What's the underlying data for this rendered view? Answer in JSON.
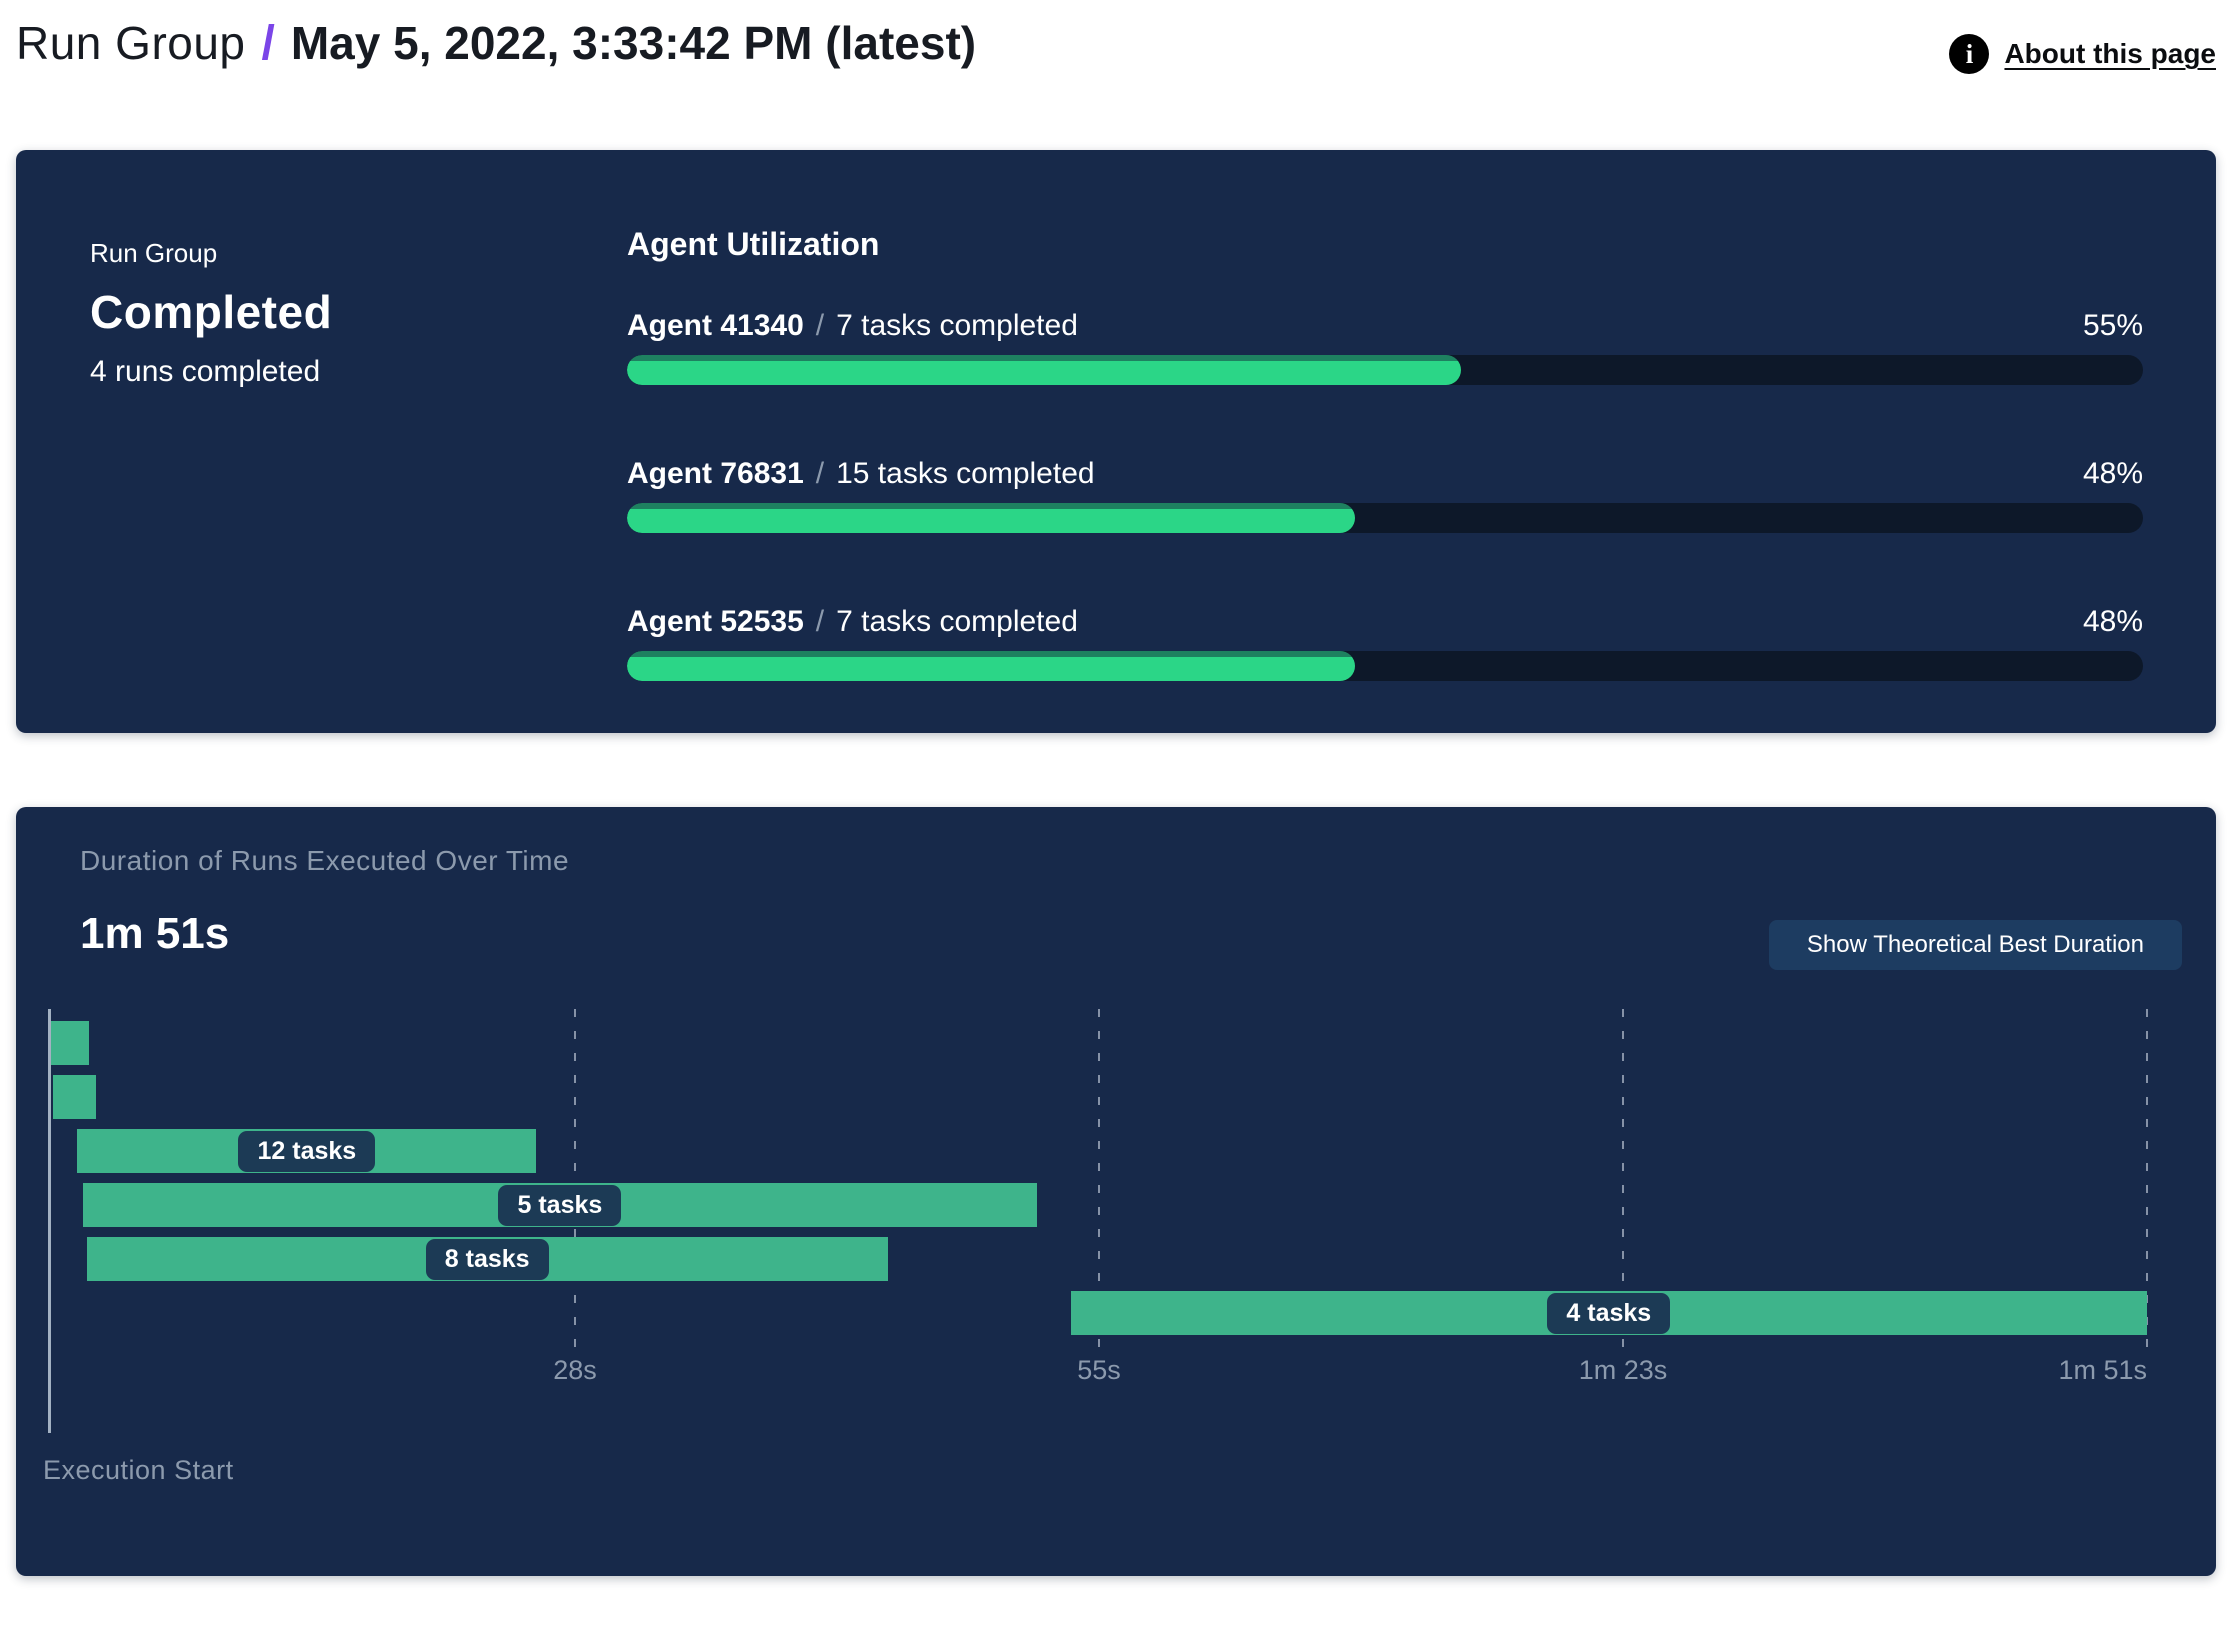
{
  "header": {
    "breadcrumb_root": "Run Group",
    "separator": "/",
    "title": "May 5, 2022, 3:33:42 PM (latest)",
    "about_link": "About this page",
    "info_glyph": "i"
  },
  "status_panel": {
    "label": "Run Group",
    "status": "Completed",
    "subtext": "4 runs completed",
    "separator": "/"
  },
  "duration_panel": {
    "button_label": "Show Theoretical Best Duration"
  },
  "colors": {
    "panel_background": "#17294a",
    "accent_purple": "#7b45e8",
    "utilization_fill": "#2bd687",
    "utilization_fill_edge": "#1e8160",
    "utilization_track": "#0d1829",
    "gantt_bar": "#3eb48b",
    "pill_background": "#1c3a55",
    "muted_text": "#8c9aad",
    "button_background": "#1d3c61"
  },
  "chart_data": [
    {
      "type": "bar",
      "title": "Agent Utilization",
      "categories": [
        "Agent 41340",
        "Agent 76831",
        "Agent 52535"
      ],
      "annotations": [
        "7 tasks completed",
        "15 tasks completed",
        "7 tasks completed"
      ],
      "values": [
        55,
        48,
        48
      ],
      "value_labels": [
        "55%",
        "48%",
        "48%"
      ],
      "xlim": [
        0,
        100
      ],
      "orientation": "horizontal",
      "legend_position": "none"
    },
    {
      "type": "gantt",
      "title": "Duration of Runs Executed Over Time",
      "total_duration_s": 111,
      "total_duration_label": "1m 51s",
      "axis_label": "Execution Start",
      "x_ticks": [
        {
          "label": "28s",
          "t": 27.75
        },
        {
          "label": "55s",
          "t": 55.5
        },
        {
          "label": "1m 23s",
          "t": 83.25
        },
        {
          "label": "1m 51s",
          "t": 111,
          "align": "right"
        }
      ],
      "runs": [
        {
          "start_s": 0,
          "end_s": 2,
          "label": ""
        },
        {
          "start_s": 0.1,
          "end_s": 2.4,
          "label": ""
        },
        {
          "start_s": 1.4,
          "end_s": 25.7,
          "label": "12 tasks"
        },
        {
          "start_s": 1.7,
          "end_s": 52.2,
          "label": "5 tasks"
        },
        {
          "start_s": 1.9,
          "end_s": 44.3,
          "label": "8 tasks"
        },
        {
          "start_s": 54,
          "end_s": 111,
          "label": "4 tasks"
        }
      ],
      "grid": "dotted-vertical",
      "xlim_s": [
        0,
        111
      ]
    }
  ]
}
